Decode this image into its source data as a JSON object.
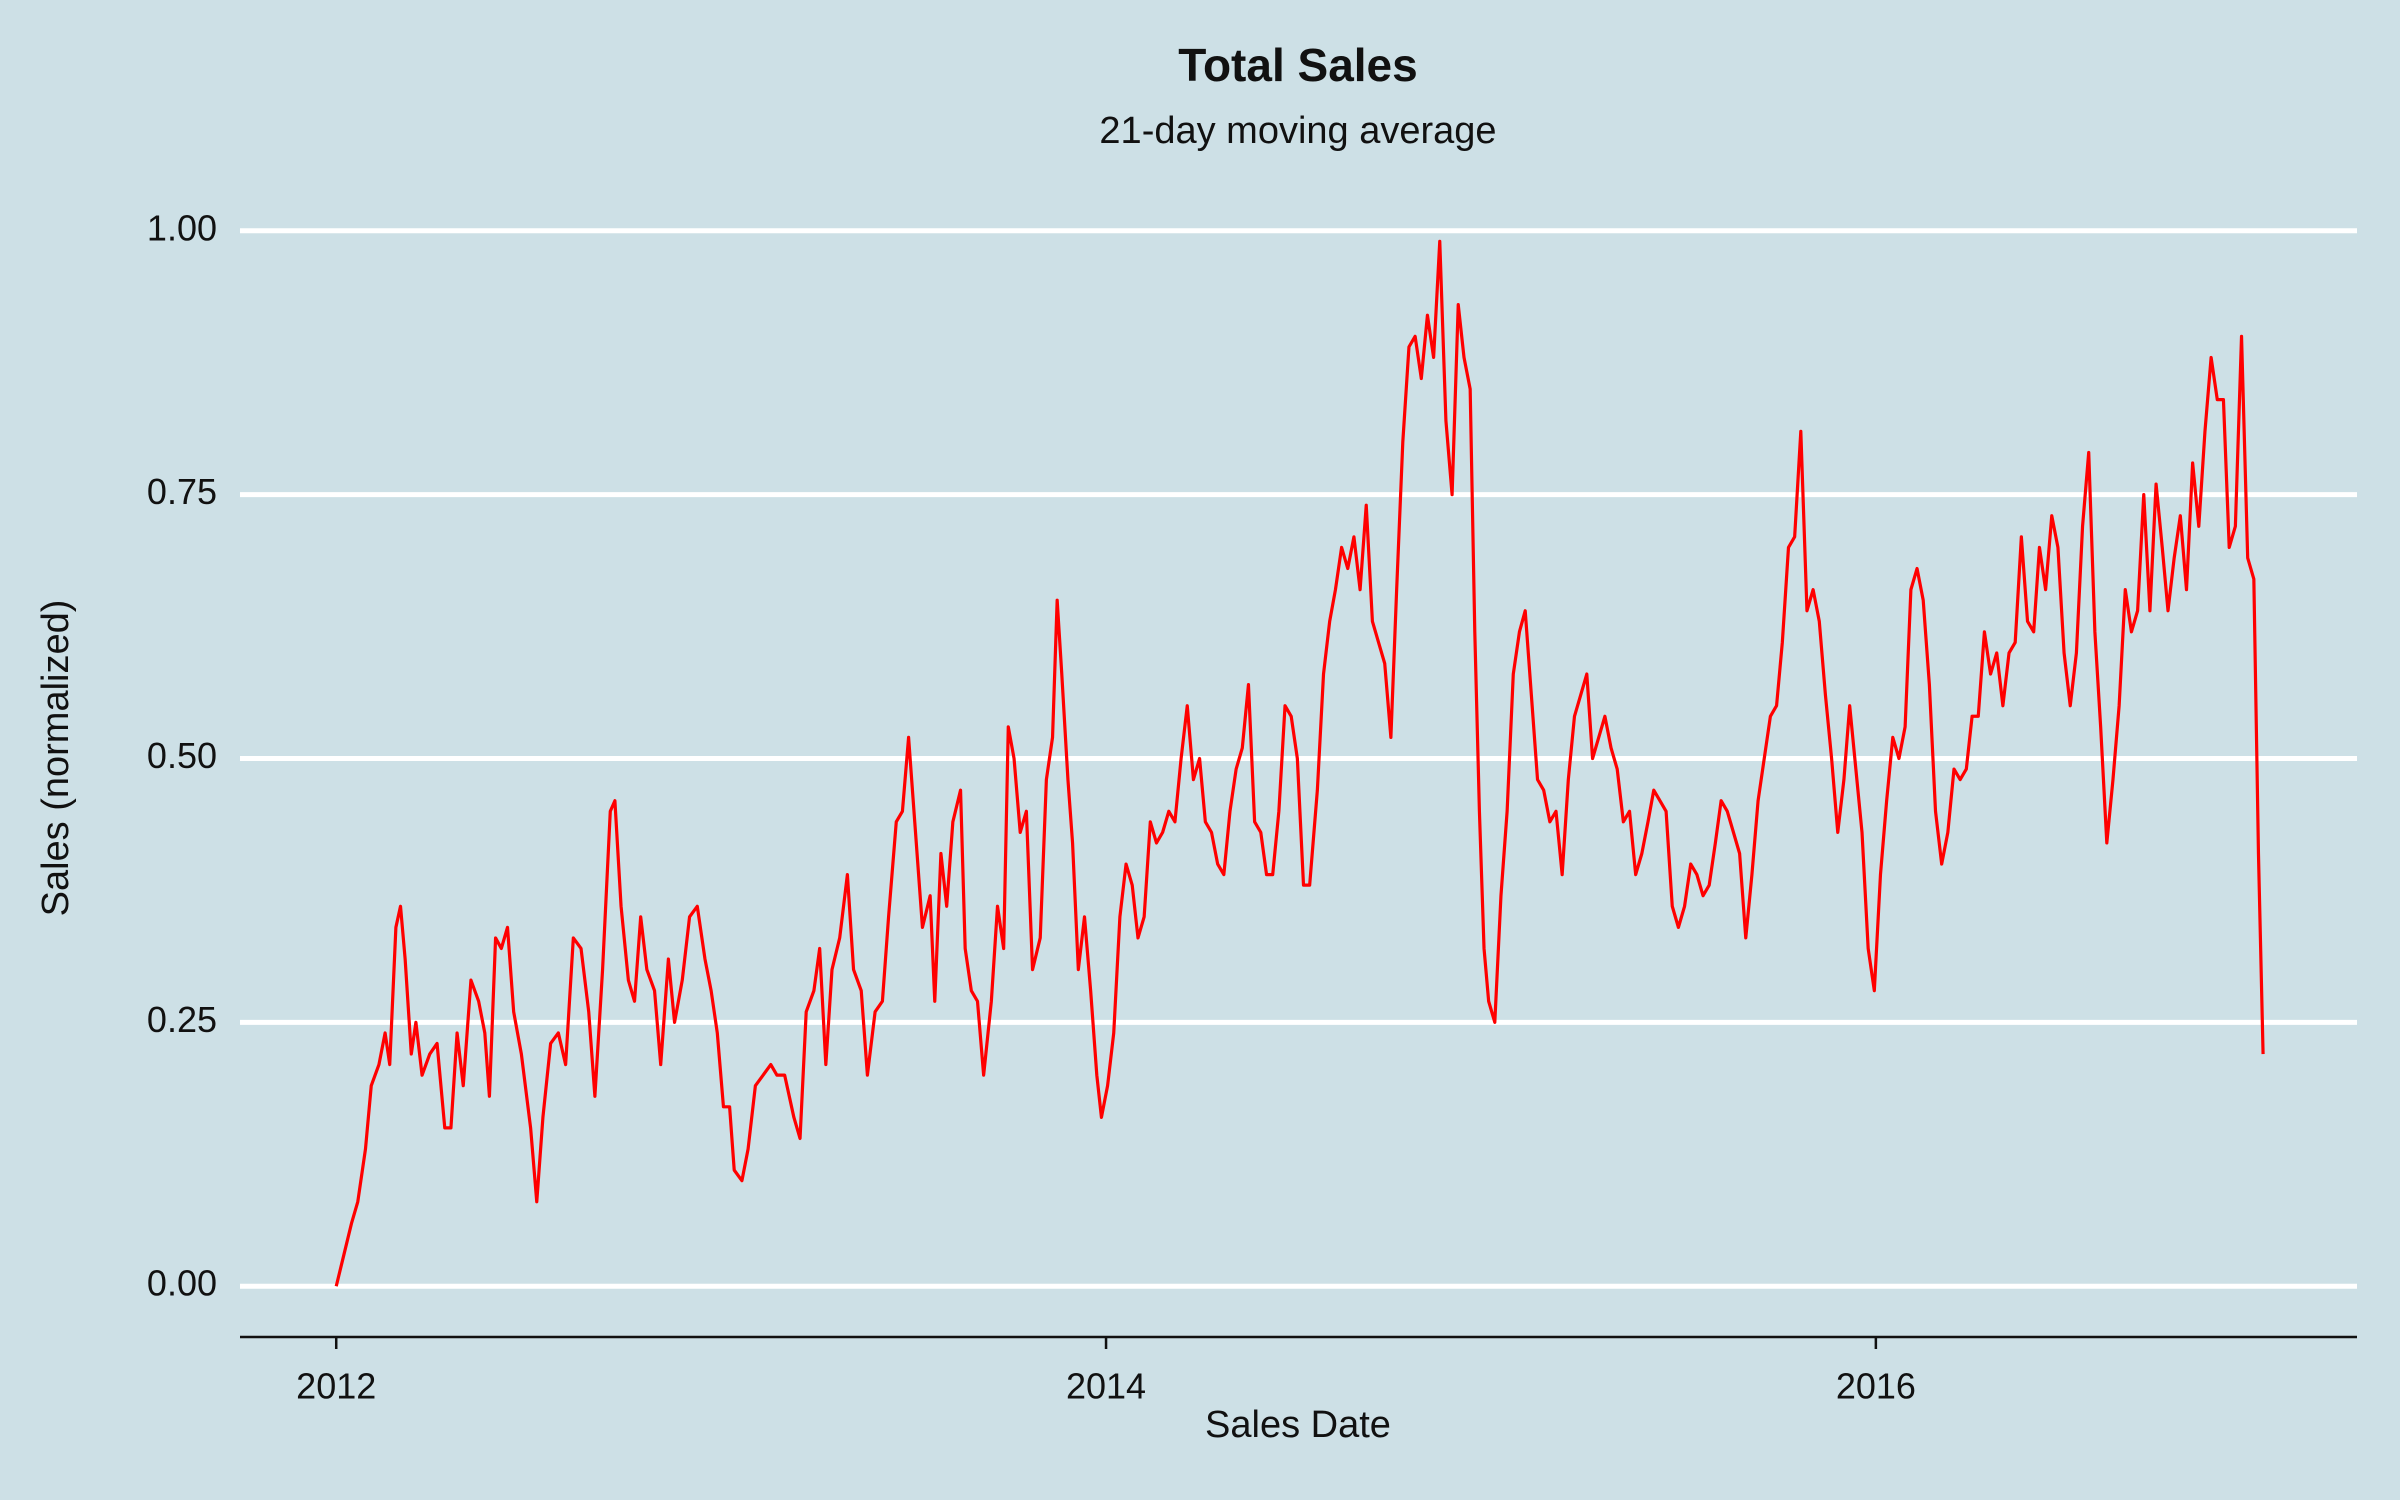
{
  "chart_data": {
    "type": "line",
    "title": "Total Sales",
    "subtitle": "21-day moving average",
    "x_label": "Sales Date",
    "y_label": "Sales (normalized)",
    "xlim": [
      2011.75,
      2017.25
    ],
    "xticks": [
      2012,
      2014,
      2016
    ],
    "ylim": [
      -0.05,
      1.05
    ],
    "yticks": [
      {
        "value": 0,
        "label": "0.00"
      },
      {
        "value": 0.25,
        "label": "0.25"
      },
      {
        "value": 0.5,
        "label": "0.50"
      },
      {
        "value": 0.75,
        "label": "0.75"
      },
      {
        "value": 1,
        "label": "1.00"
      }
    ],
    "grid": true,
    "background": "#cde0e6",
    "x": [
      2012.0,
      2012.02,
      2012.04,
      2012.056,
      2012.076,
      2012.091,
      2012.111,
      2012.127,
      2012.139,
      2012.155,
      2012.167,
      2012.179,
      2012.195,
      2012.207,
      2012.223,
      2012.243,
      2012.262,
      2012.282,
      2012.298,
      2012.314,
      2012.33,
      2012.35,
      2012.37,
      2012.386,
      2012.398,
      2012.414,
      2012.429,
      2012.445,
      2012.461,
      2012.481,
      2012.505,
      2012.521,
      2012.537,
      2012.557,
      2012.577,
      2012.596,
      2012.616,
      2012.636,
      2012.656,
      2012.672,
      2012.692,
      2012.712,
      2012.724,
      2012.74,
      2012.759,
      2012.775,
      2012.791,
      2012.807,
      2012.827,
      2012.843,
      2012.863,
      2012.879,
      2012.899,
      2012.918,
      2012.938,
      2012.958,
      2012.974,
      2012.99,
      2013.006,
      2013.022,
      2013.034,
      2013.054,
      2013.07,
      2013.089,
      2013.109,
      2013.129,
      2013.145,
      2013.165,
      2013.189,
      2013.205,
      2013.221,
      2013.241,
      2013.256,
      2013.272,
      2013.288,
      2013.308,
      2013.328,
      2013.344,
      2013.364,
      2013.38,
      2013.4,
      2013.419,
      2013.435,
      2013.455,
      2013.471,
      2013.487,
      2013.503,
      2013.523,
      2013.543,
      2013.555,
      2013.571,
      2013.586,
      2013.602,
      2013.622,
      2013.634,
      2013.65,
      2013.666,
      2013.682,
      2013.702,
      2013.718,
      2013.734,
      2013.746,
      2013.761,
      2013.777,
      2013.793,
      2013.809,
      2013.829,
      2013.845,
      2013.861,
      2013.873,
      2013.885,
      2013.901,
      2013.913,
      2013.928,
      2013.944,
      2013.96,
      2013.976,
      2013.988,
      2014.004,
      2014.02,
      2014.036,
      2014.052,
      2014.068,
      2014.083,
      2014.099,
      2014.115,
      2014.131,
      2014.147,
      2014.163,
      2014.179,
      2014.195,
      2014.211,
      2014.227,
      2014.243,
      2014.258,
      2014.274,
      2014.29,
      2014.306,
      2014.322,
      2014.338,
      2014.354,
      2014.37,
      2014.386,
      2014.402,
      2014.417,
      2014.433,
      2014.449,
      2014.465,
      2014.481,
      2014.497,
      2014.513,
      2014.529,
      2014.549,
      2014.565,
      2014.581,
      2014.596,
      2014.612,
      2014.628,
      2014.644,
      2014.66,
      2014.676,
      2014.692,
      2014.708,
      2014.724,
      2014.74,
      2014.755,
      2014.771,
      2014.787,
      2014.803,
      2014.819,
      2014.835,
      2014.851,
      2014.867,
      2014.883,
      2014.899,
      2014.915,
      2014.93,
      2014.946,
      2014.958,
      2014.97,
      2014.982,
      2014.994,
      2015.01,
      2015.026,
      2015.042,
      2015.058,
      2015.074,
      2015.089,
      2015.105,
      2015.121,
      2015.137,
      2015.153,
      2015.169,
      2015.185,
      2015.201,
      2015.217,
      2015.233,
      2015.249,
      2015.264,
      2015.28,
      2015.296,
      2015.312,
      2015.328,
      2015.344,
      2015.36,
      2015.376,
      2015.392,
      2015.408,
      2015.423,
      2015.439,
      2015.455,
      2015.471,
      2015.487,
      2015.503,
      2015.519,
      2015.535,
      2015.551,
      2015.567,
      2015.583,
      2015.598,
      2015.614,
      2015.63,
      2015.646,
      2015.662,
      2015.678,
      2015.694,
      2015.71,
      2015.726,
      2015.742,
      2015.757,
      2015.773,
      2015.789,
      2015.805,
      2015.821,
      2015.837,
      2015.853,
      2015.869,
      2015.885,
      2015.901,
      2015.917,
      2015.932,
      2015.948,
      2015.964,
      2015.98,
      2015.996,
      2016.012,
      2016.028,
      2016.044,
      2016.06,
      2016.076,
      2016.091,
      2016.107,
      2016.123,
      2016.139,
      2016.155,
      2016.171,
      2016.187,
      2016.203,
      2016.219,
      2016.235,
      2016.25,
      2016.266,
      2016.282,
      2016.298,
      2016.314,
      2016.33,
      2016.346,
      2016.362,
      2016.378,
      2016.394,
      2016.41,
      2016.425,
      2016.441,
      2016.457,
      2016.473,
      2016.489,
      2016.505,
      2016.521,
      2016.537,
      2016.553,
      2016.569,
      2016.584,
      2016.6,
      2016.616,
      2016.632,
      2016.648,
      2016.664,
      2016.68,
      2016.696,
      2016.712,
      2016.728,
      2016.744,
      2016.759,
      2016.775,
      2016.791,
      2016.807,
      2016.823,
      2016.839,
      2016.855,
      2016.871,
      2016.887,
      2016.903,
      2016.918,
      2016.934,
      2016.95,
      2016.966,
      2016.982,
      2016.994,
      2017.006
    ],
    "series": [
      {
        "color": "#ff0000",
        "values": [
          0.0,
          0.03,
          0.06,
          0.08,
          0.13,
          0.19,
          0.21,
          0.24,
          0.21,
          0.34,
          0.36,
          0.31,
          0.22,
          0.25,
          0.2,
          0.22,
          0.23,
          0.15,
          0.15,
          0.24,
          0.19,
          0.29,
          0.27,
          0.24,
          0.18,
          0.33,
          0.32,
          0.34,
          0.26,
          0.22,
          0.15,
          0.08,
          0.16,
          0.23,
          0.24,
          0.21,
          0.33,
          0.32,
          0.26,
          0.18,
          0.3,
          0.45,
          0.46,
          0.36,
          0.29,
          0.27,
          0.35,
          0.3,
          0.28,
          0.21,
          0.31,
          0.25,
          0.29,
          0.35,
          0.36,
          0.31,
          0.28,
          0.24,
          0.17,
          0.17,
          0.11,
          0.1,
          0.13,
          0.19,
          0.2,
          0.21,
          0.2,
          0.2,
          0.16,
          0.14,
          0.26,
          0.28,
          0.32,
          0.21,
          0.3,
          0.33,
          0.39,
          0.3,
          0.28,
          0.2,
          0.26,
          0.27,
          0.35,
          0.44,
          0.45,
          0.52,
          0.44,
          0.34,
          0.37,
          0.27,
          0.41,
          0.36,
          0.44,
          0.47,
          0.32,
          0.28,
          0.27,
          0.2,
          0.27,
          0.36,
          0.32,
          0.53,
          0.5,
          0.43,
          0.45,
          0.3,
          0.33,
          0.48,
          0.52,
          0.65,
          0.58,
          0.48,
          0.42,
          0.3,
          0.35,
          0.28,
          0.2,
          0.16,
          0.19,
          0.24,
          0.35,
          0.4,
          0.38,
          0.33,
          0.35,
          0.44,
          0.42,
          0.43,
          0.45,
          0.44,
          0.5,
          0.55,
          0.48,
          0.5,
          0.44,
          0.43,
          0.4,
          0.39,
          0.45,
          0.49,
          0.51,
          0.57,
          0.44,
          0.43,
          0.39,
          0.39,
          0.45,
          0.55,
          0.54,
          0.5,
          0.38,
          0.38,
          0.47,
          0.58,
          0.63,
          0.66,
          0.7,
          0.68,
          0.71,
          0.66,
          0.74,
          0.63,
          0.61,
          0.59,
          0.52,
          0.66,
          0.8,
          0.89,
          0.9,
          0.86,
          0.92,
          0.88,
          0.99,
          0.82,
          0.75,
          0.93,
          0.88,
          0.85,
          0.62,
          0.45,
          0.32,
          0.27,
          0.25,
          0.37,
          0.45,
          0.58,
          0.62,
          0.64,
          0.56,
          0.48,
          0.47,
          0.44,
          0.45,
          0.39,
          0.48,
          0.54,
          0.56,
          0.58,
          0.5,
          0.52,
          0.54,
          0.51,
          0.49,
          0.44,
          0.45,
          0.39,
          0.41,
          0.44,
          0.47,
          0.46,
          0.45,
          0.36,
          0.34,
          0.36,
          0.4,
          0.39,
          0.37,
          0.38,
          0.42,
          0.46,
          0.45,
          0.43,
          0.41,
          0.33,
          0.39,
          0.46,
          0.5,
          0.54,
          0.55,
          0.61,
          0.7,
          0.71,
          0.81,
          0.64,
          0.66,
          0.63,
          0.56,
          0.5,
          0.43,
          0.48,
          0.55,
          0.49,
          0.43,
          0.32,
          0.28,
          0.39,
          0.46,
          0.52,
          0.5,
          0.53,
          0.66,
          0.68,
          0.65,
          0.57,
          0.45,
          0.4,
          0.43,
          0.49,
          0.48,
          0.49,
          0.54,
          0.54,
          0.62,
          0.58,
          0.6,
          0.55,
          0.6,
          0.61,
          0.71,
          0.63,
          0.62,
          0.7,
          0.66,
          0.73,
          0.7,
          0.6,
          0.55,
          0.6,
          0.72,
          0.79,
          0.62,
          0.53,
          0.42,
          0.48,
          0.55,
          0.66,
          0.62,
          0.64,
          0.75,
          0.64,
          0.76,
          0.7,
          0.64,
          0.69,
          0.73,
          0.66,
          0.78,
          0.72,
          0.81,
          0.88,
          0.84,
          0.84,
          0.7,
          0.72,
          0.9,
          0.69,
          0.67,
          0.41,
          0.22
        ]
      }
    ]
  }
}
